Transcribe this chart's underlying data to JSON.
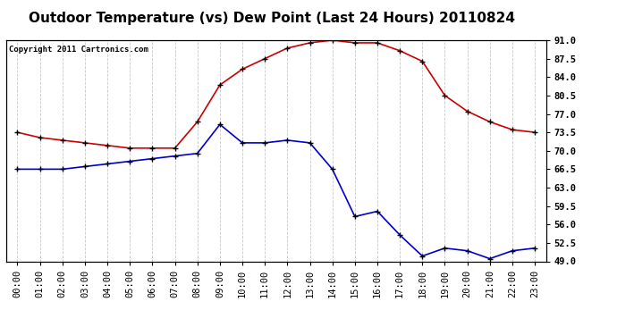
{
  "title": "Outdoor Temperature (vs) Dew Point (Last 24 Hours) 20110824",
  "copyright": "Copyright 2011 Cartronics.com",
  "x_labels": [
    "00:00",
    "01:00",
    "02:00",
    "03:00",
    "04:00",
    "05:00",
    "06:00",
    "07:00",
    "08:00",
    "09:00",
    "10:00",
    "11:00",
    "12:00",
    "13:00",
    "14:00",
    "15:00",
    "16:00",
    "17:00",
    "18:00",
    "19:00",
    "20:00",
    "21:00",
    "22:00",
    "23:00"
  ],
  "temp_red": [
    73.5,
    72.5,
    72.0,
    71.5,
    71.0,
    70.5,
    70.5,
    70.5,
    75.5,
    82.5,
    85.5,
    87.5,
    89.5,
    90.5,
    91.0,
    90.5,
    90.5,
    89.0,
    87.0,
    80.5,
    77.5,
    75.5,
    74.0,
    73.5
  ],
  "dew_blue": [
    66.5,
    66.5,
    66.5,
    67.0,
    67.5,
    68.0,
    68.5,
    69.0,
    69.5,
    75.0,
    71.5,
    71.5,
    72.0,
    71.5,
    66.5,
    57.5,
    58.5,
    54.0,
    50.0,
    51.5,
    51.0,
    49.5,
    51.0,
    51.5
  ],
  "ylim": [
    49.0,
    91.0
  ],
  "yticks": [
    49.0,
    52.5,
    56.0,
    59.5,
    63.0,
    66.5,
    70.0,
    73.5,
    77.0,
    80.5,
    84.0,
    87.5,
    91.0
  ],
  "red_color": "#cc0000",
  "blue_color": "#0000cc",
  "bg_color": "#ffffff",
  "grid_color": "#c8c8c8",
  "title_fontsize": 11,
  "copyright_fontsize": 6.5,
  "tick_fontsize": 7.5
}
